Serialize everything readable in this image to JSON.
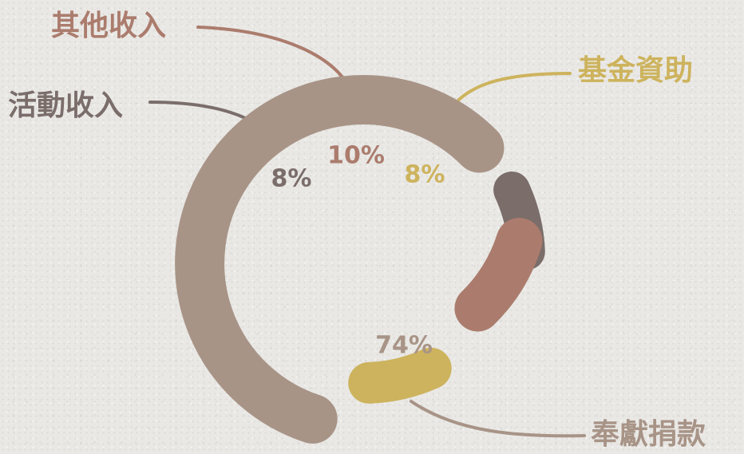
{
  "chart_data": {
    "type": "pie",
    "style": "exploded-donut",
    "categories": [
      "奉獻捐款",
      "活動收入",
      "其他收入",
      "基金資助"
    ],
    "values": [
      74,
      8,
      10,
      8
    ],
    "labels": [
      "74%",
      "8%",
      "10%",
      "8%"
    ],
    "colors": [
      "#a89487",
      "#7a6d6a",
      "#ab7c6d",
      "#cdb35d"
    ],
    "title": "",
    "legend": "callout labels with leader lines"
  }
}
